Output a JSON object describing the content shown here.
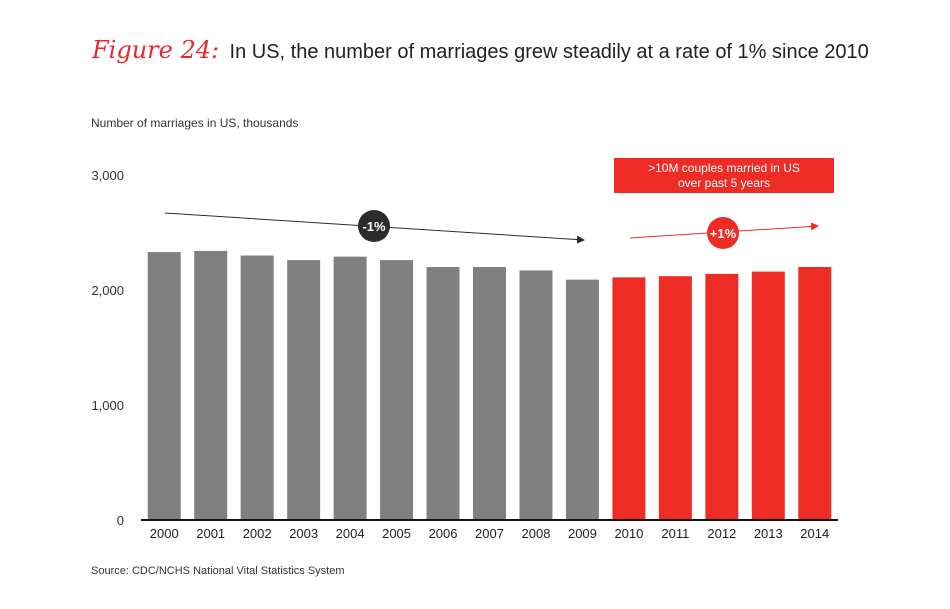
{
  "figure_label": "Figure 24:",
  "title_text": "In US, the number of marriages grew steadily at a rate of 1% since 2010",
  "source": "Source: CDC/NCHS National Vital Statistics System",
  "colors": {
    "gray_bar": "#808081",
    "red_bar": "#ee2b24",
    "accent": "#e8282b",
    "dark_badge": "#2c2c2c"
  },
  "chart_data": {
    "type": "bar",
    "ylabel": "Number of marriages in US, thousands",
    "xlabel": "",
    "ylim": [
      0,
      3000
    ],
    "yticks": [
      0,
      1000,
      2000,
      3000
    ],
    "ytick_labels": [
      "0",
      "1,000",
      "2,000",
      "3,000"
    ],
    "categories": [
      "2000",
      "2001",
      "2002",
      "2003",
      "2004",
      "2005",
      "2006",
      "2007",
      "2008",
      "2009",
      "2010",
      "2011",
      "2012",
      "2013",
      "2014"
    ],
    "values": [
      2330,
      2340,
      2300,
      2260,
      2290,
      2260,
      2200,
      2200,
      2170,
      2090,
      2110,
      2120,
      2140,
      2160,
      2200
    ],
    "highlight_from_index": 10,
    "annotations": {
      "decline_label": "-1%",
      "growth_label": "+1%",
      "callout_line1": ">10M couples married in US",
      "callout_line2": "over past 5 years"
    }
  }
}
